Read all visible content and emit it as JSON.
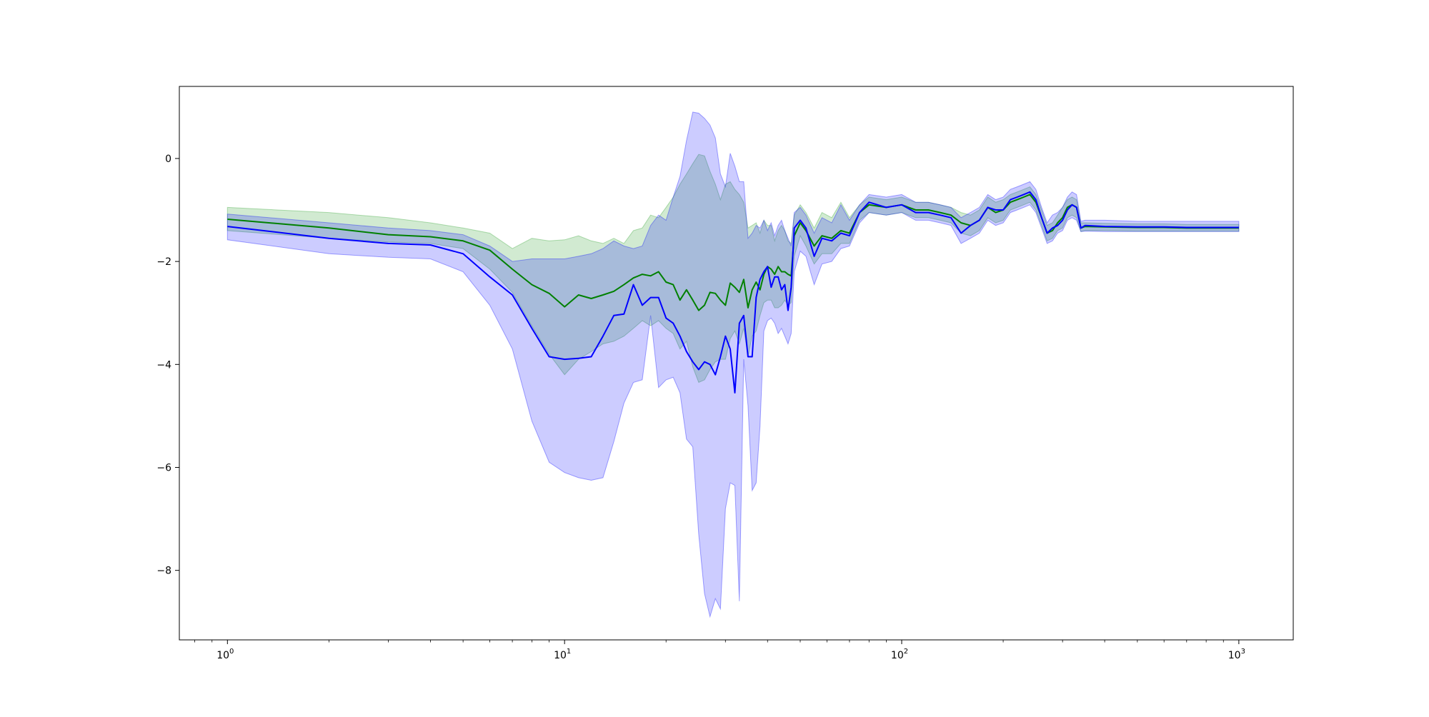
{
  "chart_data": {
    "type": "line",
    "x_scale": "log",
    "xlim": [
      0.72,
      1450
    ],
    "ylim": [
      -9.35,
      1.4
    ],
    "x_ticks": [
      {
        "value": 1,
        "base": "10",
        "exp": "0"
      },
      {
        "value": 10,
        "base": "10",
        "exp": "1"
      },
      {
        "value": 100,
        "base": "10",
        "exp": "2"
      },
      {
        "value": 1000,
        "base": "10",
        "exp": "3"
      }
    ],
    "y_ticks": [
      {
        "value": 0,
        "label": "0"
      },
      {
        "value": -2,
        "label": "−2"
      },
      {
        "value": -4,
        "label": "−4"
      },
      {
        "value": -6,
        "label": "−6"
      },
      {
        "value": -8,
        "label": "−8"
      }
    ],
    "grid": false,
    "series": [
      {
        "color": "#008000",
        "band_color": "#2ca02c",
        "x": [
          1,
          2,
          3,
          4,
          5,
          6,
          7,
          8,
          9,
          10,
          11,
          12,
          13,
          14,
          15,
          16,
          17,
          18,
          19,
          20,
          21,
          22,
          23,
          24,
          25,
          26,
          27,
          28,
          29,
          30,
          31,
          32,
          33,
          34,
          35,
          36,
          37,
          38,
          39,
          40,
          41,
          42,
          43,
          44,
          45,
          46,
          47,
          48,
          50,
          52,
          55,
          58,
          62,
          66,
          70,
          75,
          80,
          90,
          100,
          110,
          120,
          130,
          140,
          150,
          160,
          170,
          180,
          190,
          200,
          210,
          220,
          230,
          240,
          250,
          260,
          270,
          280,
          290,
          300,
          310,
          320,
          330,
          340,
          350,
          400,
          500,
          600,
          700,
          800,
          900,
          1000
        ],
        "y": [
          -1.18,
          -1.35,
          -1.48,
          -1.52,
          -1.6,
          -1.78,
          -2.15,
          -2.45,
          -2.62,
          -2.88,
          -2.65,
          -2.72,
          -2.65,
          -2.58,
          -2.45,
          -2.32,
          -2.25,
          -2.28,
          -2.2,
          -2.4,
          -2.45,
          -2.75,
          -2.55,
          -2.75,
          -2.95,
          -2.85,
          -2.6,
          -2.62,
          -2.75,
          -2.85,
          -2.42,
          -2.5,
          -2.6,
          -2.35,
          -2.9,
          -2.55,
          -2.4,
          -2.55,
          -2.25,
          -2.1,
          -2.15,
          -2.25,
          -2.1,
          -2.2,
          -2.2,
          -2.25,
          -2.28,
          -1.5,
          -1.25,
          -1.4,
          -1.7,
          -1.5,
          -1.55,
          -1.4,
          -1.45,
          -1.05,
          -0.9,
          -0.95,
          -0.9,
          -1.0,
          -1.0,
          -1.05,
          -1.1,
          -1.25,
          -1.3,
          -1.2,
          -0.95,
          -1.05,
          -1.0,
          -0.85,
          -0.8,
          -0.75,
          -0.7,
          -0.85,
          -1.15,
          -1.45,
          -1.4,
          -1.25,
          -1.15,
          -0.95,
          -0.9,
          -0.95,
          -1.35,
          -1.32,
          -1.33,
          -1.34,
          -1.34,
          -1.35,
          -1.35,
          -1.35,
          -1.35
        ],
        "lower": [
          -1.4,
          -1.55,
          -1.62,
          -1.65,
          -1.75,
          -2.15,
          -2.6,
          -3.25,
          -3.8,
          -4.2,
          -3.9,
          -3.75,
          -3.6,
          -3.55,
          -3.45,
          -3.3,
          -3.15,
          -3.25,
          -3.15,
          -3.3,
          -3.4,
          -3.7,
          -3.55,
          -4.05,
          -4.35,
          -4.3,
          -4.1,
          -3.95,
          -3.9,
          -3.9,
          -3.5,
          -3.35,
          -3.6,
          -3.3,
          -3.85,
          -3.45,
          -3.35,
          -3.05,
          -2.8,
          -2.75,
          -2.75,
          -2.9,
          -2.9,
          -2.85,
          -2.75,
          -2.85,
          -2.8,
          -1.9,
          -1.5,
          -1.7,
          -2.05,
          -1.85,
          -1.85,
          -1.65,
          -1.65,
          -1.2,
          -1.05,
          -1.1,
          -1.05,
          -1.15,
          -1.15,
          -1.2,
          -1.25,
          -1.45,
          -1.5,
          -1.4,
          -1.15,
          -1.25,
          -1.2,
          -1.0,
          -0.95,
          -0.9,
          -0.85,
          -1.0,
          -1.3,
          -1.6,
          -1.55,
          -1.4,
          -1.35,
          -1.15,
          -1.1,
          -1.15,
          -1.42,
          -1.4,
          -1.4,
          -1.41,
          -1.41,
          -1.41,
          -1.41,
          -1.41,
          -1.41
        ],
        "upper": [
          -0.95,
          -1.05,
          -1.15,
          -1.25,
          -1.35,
          -1.45,
          -1.75,
          -1.55,
          -1.6,
          -1.58,
          -1.5,
          -1.6,
          -1.65,
          -1.55,
          -1.65,
          -1.4,
          -1.35,
          -1.1,
          -1.15,
          -0.95,
          -0.75,
          -0.5,
          -0.3,
          -0.1,
          0.08,
          0.05,
          -0.25,
          -0.5,
          -0.8,
          -0.5,
          -0.45,
          -0.6,
          -0.7,
          -0.85,
          -1.35,
          -1.3,
          -1.25,
          -1.45,
          -1.2,
          -1.3,
          -1.3,
          -1.6,
          -1.4,
          -1.3,
          -1.4,
          -1.6,
          -1.65,
          -1.1,
          -0.9,
          -1.05,
          -1.35,
          -1.05,
          -1.15,
          -0.85,
          -1.15,
          -0.9,
          -0.75,
          -0.8,
          -0.75,
          -0.85,
          -0.85,
          -0.9,
          -0.95,
          -1.05,
          -1.1,
          -1.0,
          -0.75,
          -0.85,
          -0.8,
          -0.7,
          -0.65,
          -0.6,
          -0.55,
          -0.7,
          -1.0,
          -1.3,
          -1.25,
          -1.1,
          -0.95,
          -0.8,
          -0.75,
          -0.8,
          -1.25,
          -1.25,
          -1.26,
          -1.27,
          -1.27,
          -1.28,
          -1.28,
          -1.28,
          -1.28
        ]
      },
      {
        "color": "#0000ff",
        "band_color": "#0000ff",
        "x": [
          1,
          2,
          3,
          4,
          5,
          6,
          7,
          8,
          9,
          10,
          11,
          12,
          13,
          14,
          15,
          16,
          17,
          18,
          19,
          20,
          21,
          22,
          23,
          24,
          25,
          26,
          27,
          28,
          29,
          30,
          31,
          32,
          33,
          34,
          35,
          36,
          37,
          38,
          39,
          40,
          41,
          42,
          43,
          44,
          45,
          46,
          47,
          48,
          50,
          52,
          55,
          58,
          62,
          66,
          70,
          75,
          80,
          90,
          100,
          110,
          120,
          130,
          140,
          150,
          160,
          170,
          180,
          190,
          200,
          210,
          220,
          230,
          240,
          250,
          260,
          270,
          280,
          290,
          300,
          310,
          320,
          330,
          340,
          350,
          400,
          500,
          600,
          700,
          800,
          900,
          1000
        ],
        "y": [
          -1.32,
          -1.55,
          -1.65,
          -1.68,
          -1.85,
          -2.3,
          -2.65,
          -3.3,
          -3.85,
          -3.9,
          -3.88,
          -3.85,
          -3.45,
          -3.05,
          -3.02,
          -2.45,
          -2.85,
          -2.7,
          -2.7,
          -3.1,
          -3.2,
          -3.45,
          -3.75,
          -3.95,
          -4.1,
          -3.95,
          -4.0,
          -4.2,
          -3.85,
          -3.45,
          -3.7,
          -4.55,
          -3.2,
          -3.05,
          -3.85,
          -3.85,
          -2.7,
          -2.35,
          -2.2,
          -2.1,
          -2.5,
          -2.3,
          -2.3,
          -2.55,
          -2.45,
          -2.95,
          -2.5,
          -1.35,
          -1.2,
          -1.35,
          -1.9,
          -1.55,
          -1.6,
          -1.45,
          -1.5,
          -1.05,
          -0.85,
          -0.95,
          -0.9,
          -1.05,
          -1.05,
          -1.1,
          -1.15,
          -1.45,
          -1.3,
          -1.2,
          -0.95,
          -1.0,
          -1.0,
          -0.8,
          -0.75,
          -0.7,
          -0.65,
          -0.8,
          -1.15,
          -1.45,
          -1.35,
          -1.3,
          -1.2,
          -1.0,
          -0.9,
          -0.95,
          -1.35,
          -1.3,
          -1.32,
          -1.33,
          -1.33,
          -1.34,
          -1.34,
          -1.34,
          -1.34
        ],
        "lower": [
          -1.58,
          -1.85,
          -1.92,
          -1.95,
          -2.2,
          -2.85,
          -3.7,
          -5.1,
          -5.9,
          -6.1,
          -6.2,
          -6.25,
          -6.2,
          -5.5,
          -4.75,
          -4.35,
          -4.3,
          -3.05,
          -4.45,
          -4.3,
          -4.25,
          -4.55,
          -5.45,
          -5.6,
          -7.3,
          -8.45,
          -8.9,
          -8.55,
          -8.75,
          -6.8,
          -6.3,
          -6.35,
          -8.6,
          -3.9,
          -4.8,
          -6.45,
          -6.3,
          -5.2,
          -3.35,
          -3.15,
          -3.1,
          -3.2,
          -3.4,
          -3.3,
          -3.45,
          -3.6,
          -3.4,
          -2.2,
          -1.8,
          -1.9,
          -2.45,
          -2.05,
          -2.0,
          -1.75,
          -1.7,
          -1.25,
          -1.05,
          -1.1,
          -1.05,
          -1.2,
          -1.2,
          -1.25,
          -1.3,
          -1.65,
          -1.55,
          -1.45,
          -1.2,
          -1.3,
          -1.25,
          -1.05,
          -1.0,
          -0.95,
          -0.9,
          -1.05,
          -1.35,
          -1.65,
          -1.6,
          -1.45,
          -1.4,
          -1.2,
          -1.15,
          -1.2,
          -1.42,
          -1.41,
          -1.42,
          -1.42,
          -1.42,
          -1.42,
          -1.42,
          -1.42,
          -1.42
        ],
        "upper": [
          -1.08,
          -1.25,
          -1.35,
          -1.4,
          -1.48,
          -1.7,
          -2.0,
          -1.95,
          -1.95,
          -1.95,
          -1.9,
          -1.85,
          -1.75,
          -1.6,
          -1.7,
          -1.75,
          -1.7,
          -1.3,
          -1.1,
          -1.2,
          -0.75,
          -0.35,
          0.35,
          0.9,
          0.88,
          0.78,
          0.65,
          0.4,
          -0.3,
          -0.55,
          0.1,
          -0.15,
          -0.45,
          -0.45,
          -1.55,
          -1.45,
          -1.3,
          -1.35,
          -1.2,
          -1.4,
          -1.25,
          -1.5,
          -1.3,
          -1.2,
          -1.4,
          -1.55,
          -1.7,
          -1.05,
          -0.95,
          -1.1,
          -1.45,
          -1.15,
          -1.25,
          -0.9,
          -1.2,
          -0.9,
          -0.7,
          -0.75,
          -0.7,
          -0.85,
          -0.85,
          -0.9,
          -0.95,
          -1.15,
          -1.05,
          -0.95,
          -0.7,
          -0.8,
          -0.75,
          -0.6,
          -0.55,
          -0.5,
          -0.45,
          -0.6,
          -0.95,
          -1.25,
          -1.1,
          -1.05,
          -0.95,
          -0.75,
          -0.65,
          -0.7,
          -1.22,
          -1.2,
          -1.2,
          -1.22,
          -1.22,
          -1.22,
          -1.22,
          -1.22,
          -1.22
        ]
      }
    ]
  }
}
